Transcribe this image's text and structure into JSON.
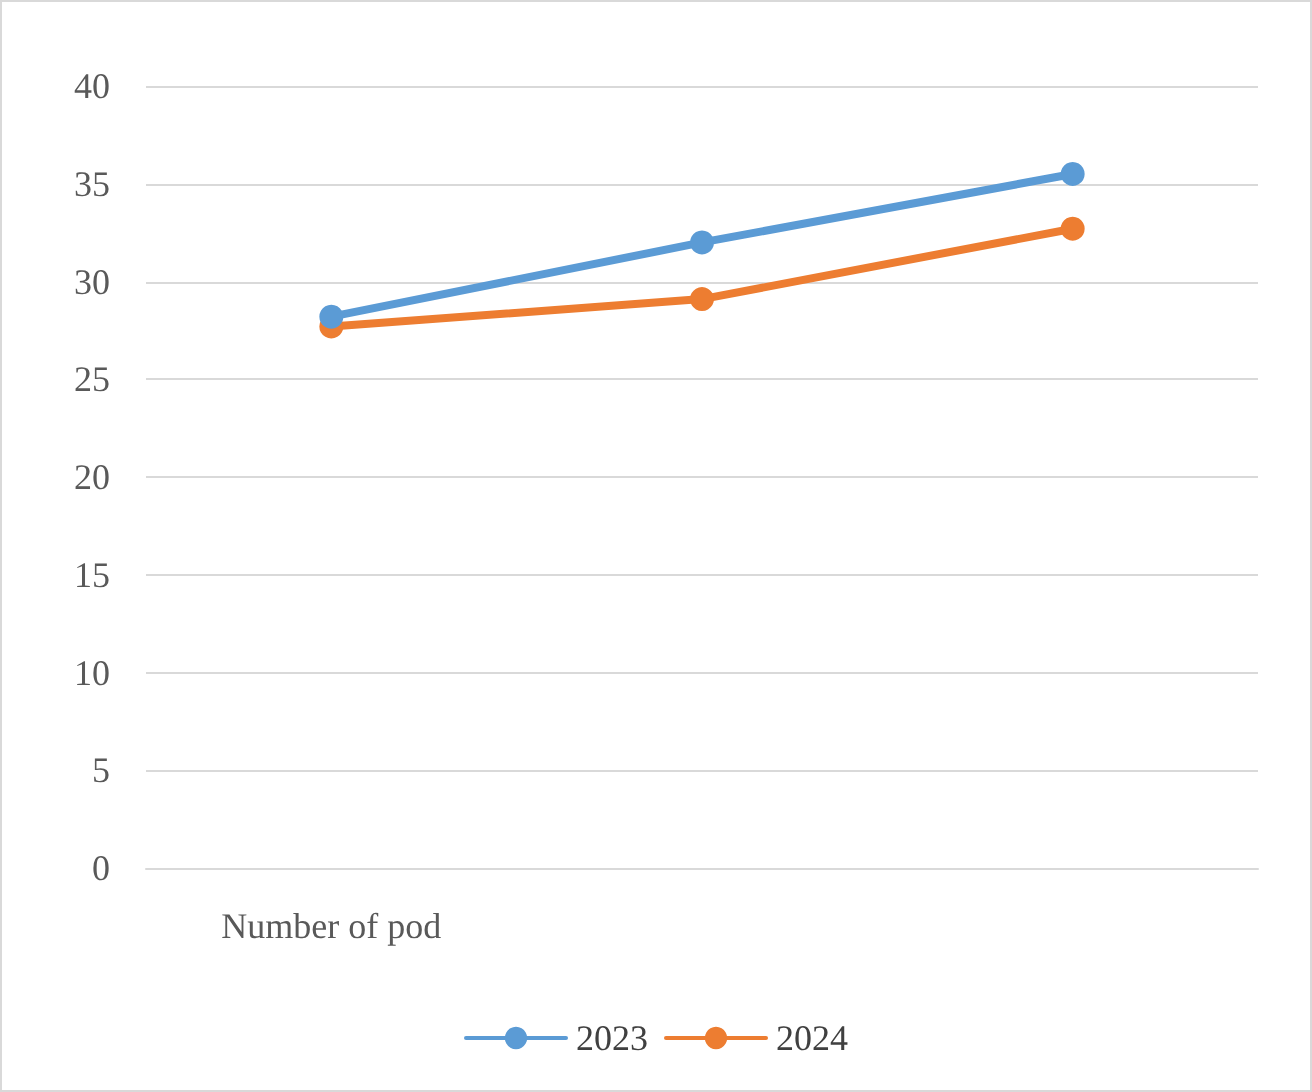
{
  "chart_data": {
    "type": "line",
    "categories": [
      "Number of pod",
      null,
      null
    ],
    "series": [
      {
        "name": "2023",
        "color": "#5b9bd5",
        "values": [
          28.2,
          32.0,
          35.5
        ]
      },
      {
        "name": "2024",
        "color": "#ed7d31",
        "values": [
          27.7,
          29.1,
          32.7
        ]
      }
    ],
    "ylim": [
      0,
      40
    ],
    "yticks": [
      0,
      5,
      10,
      15,
      20,
      25,
      30,
      35,
      40
    ],
    "grid": "y",
    "legend": "bottom",
    "marker": "circle",
    "line_style": "solid"
  }
}
